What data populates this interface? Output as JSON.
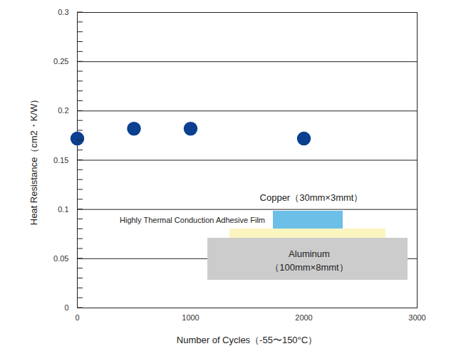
{
  "chart_data": {
    "type": "scatter",
    "x_label": "Number of Cycles（-55〜150°C）",
    "y_label": "Heat Resistance（cm2・K/W）",
    "x": [
      0,
      500,
      1000,
      2000
    ],
    "values": [
      0.172,
      0.182,
      0.182,
      0.172
    ],
    "color": "#0b3f8f",
    "marker": "circle",
    "xlim": [
      0,
      3000
    ],
    "xticks": [
      0,
      1000,
      2000,
      3000
    ],
    "ylim": [
      0,
      0.3
    ],
    "yticks": [
      0,
      0.05,
      0.1,
      0.15,
      0.2,
      0.25,
      0.3
    ],
    "grid": true,
    "annotations": [
      "Copper（30mm×3mmt）",
      "Highly Thermal Conduction Adhesive Film",
      "Aluminum",
      "（100mm×8mmt）"
    ]
  }
}
